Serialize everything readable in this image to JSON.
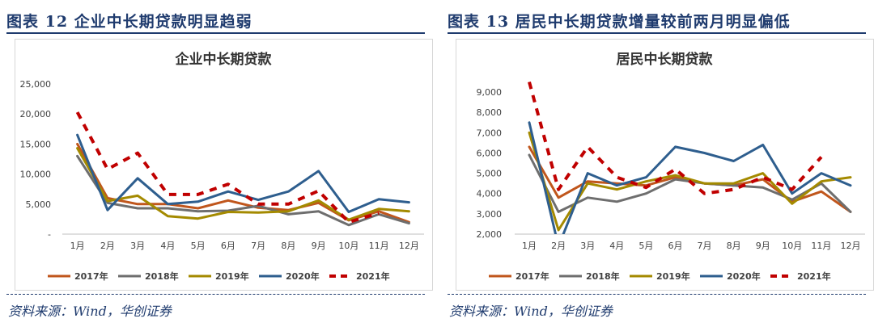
{
  "panels": [
    {
      "figure_title": "图表  12    企业中长期贷款明显趋弱",
      "source": "资料来源：Wind，华创证券"
    },
    {
      "figure_title": "图表  13    居民中长期贷款增量较前两月明显偏低",
      "source": "资料来源：Wind，华创证券"
    }
  ],
  "chart_data": [
    {
      "type": "line",
      "title": "企业中长期贷款",
      "categories": [
        "1月",
        "2月",
        "3月",
        "4月",
        "5月",
        "6月",
        "7月",
        "8月",
        "9月",
        "10月",
        "11月",
        "12月"
      ],
      "y_tick_labels": [
        "-",
        "5,000",
        "10,000",
        "15,000",
        "20,000",
        "25,000"
      ],
      "ylim": [
        0,
        25000
      ],
      "grid": false,
      "legend_position": "bottom",
      "series": [
        {
          "name": "2017年",
          "color": "#c0561c",
          "dashed": false,
          "values": [
            15000,
            6000,
            5000,
            5000,
            4300,
            5600,
            4400,
            4000,
            5200,
            2300,
            3800,
            2000
          ]
        },
        {
          "name": "2018年",
          "color": "#6e6e6e",
          "dashed": false,
          "values": [
            13000,
            5200,
            4300,
            4300,
            3800,
            3900,
            4700,
            3300,
            3800,
            1500,
            3300,
            1800
          ]
        },
        {
          "name": "2019年",
          "color": "#a48a00",
          "dashed": false,
          "values": [
            14300,
            5500,
            6400,
            3000,
            2600,
            3700,
            3600,
            3800,
            5600,
            2400,
            4200,
            3800
          ]
        },
        {
          "name": "2020年",
          "color": "#2e5e8e",
          "dashed": false,
          "values": [
            16500,
            4000,
            9300,
            5000,
            5400,
            7100,
            5700,
            7100,
            10500,
            3700,
            5800,
            5300
          ]
        },
        {
          "name": "2021年",
          "color": "#c00000",
          "dashed": true,
          "values": [
            20300,
            10800,
            13500,
            6600,
            6600,
            8300,
            5000,
            5000,
            7200,
            2000,
            3500,
            null
          ]
        }
      ]
    },
    {
      "type": "line",
      "title": "居民中长期贷款",
      "categories": [
        "1月",
        "2月",
        "3月",
        "4月",
        "5月",
        "6月",
        "7月",
        "8月",
        "9月",
        "10月",
        "11月",
        "12月"
      ],
      "y_tick_labels": [
        "2,000",
        "3,000",
        "4,000",
        "5,000",
        "6,000",
        "7,000",
        "8,000",
        "9,000"
      ],
      "ylim": [
        2000,
        9600
      ],
      "grid": false,
      "legend_position": "bottom",
      "series": [
        {
          "name": "2017年",
          "color": "#c0561c",
          "dashed": false,
          "values": [
            6300,
            3800,
            4600,
            4500,
            4400,
            4800,
            4500,
            4400,
            4700,
            3600,
            4100,
            3100
          ]
        },
        {
          "name": "2018年",
          "color": "#6e6e6e",
          "dashed": false,
          "values": [
            5900,
            3100,
            3800,
            3600,
            4000,
            4700,
            4500,
            4400,
            4300,
            3700,
            4500,
            3100
          ]
        },
        {
          "name": "2019年",
          "color": "#a48a00",
          "dashed": false,
          "values": [
            7000,
            2200,
            4500,
            4200,
            4600,
            4900,
            4500,
            4500,
            5000,
            3500,
            4600,
            4800
          ]
        },
        {
          "name": "2020年",
          "color": "#2e5e8e",
          "dashed": false,
          "values": [
            7500,
            1400,
            5000,
            4400,
            4800,
            6300,
            6000,
            5600,
            6400,
            4000,
            5000,
            4400
          ]
        },
        {
          "name": "2021年",
          "color": "#c00000",
          "dashed": true,
          "values": [
            9500,
            4200,
            6300,
            4800,
            4300,
            5200,
            4000,
            4200,
            4800,
            4200,
            5800,
            null
          ]
        }
      ]
    }
  ]
}
